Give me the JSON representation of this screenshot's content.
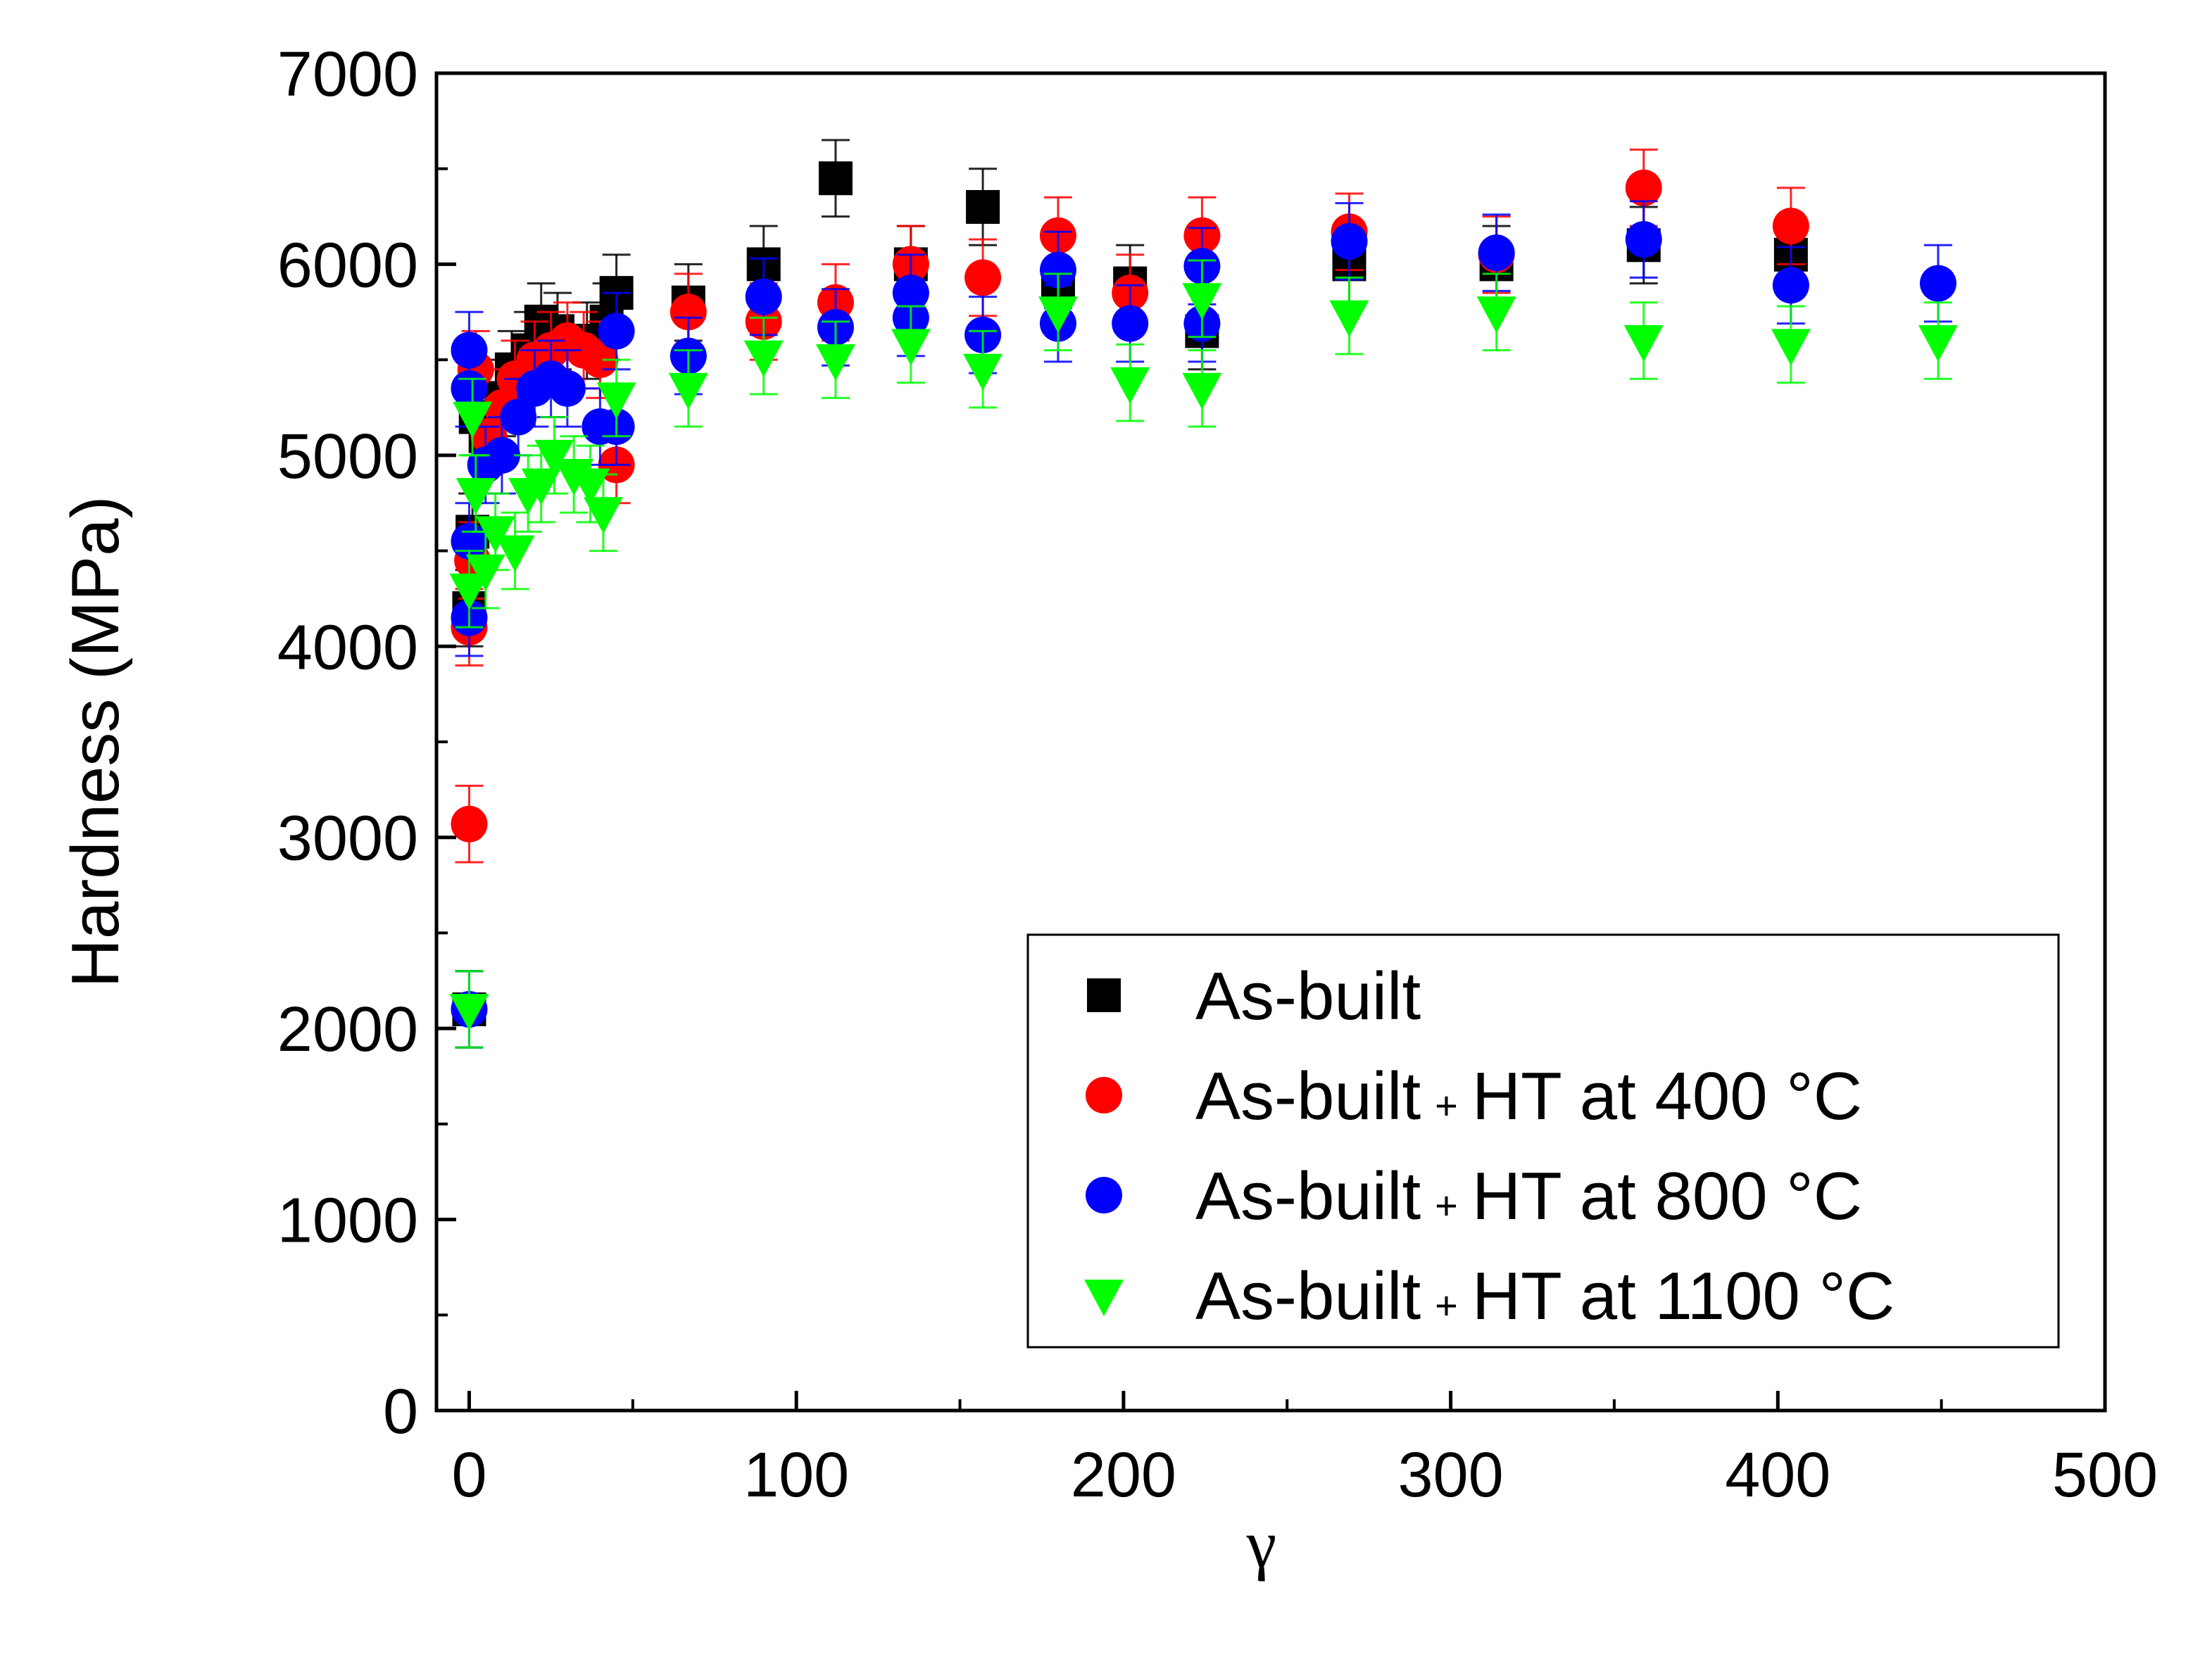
{
  "chart_data": {
    "type": "scatter",
    "title": "",
    "xlabel": "γ",
    "ylabel": "Hardness (MPa)",
    "xlim": [
      -10,
      500
    ],
    "ylim": [
      0,
      7000
    ],
    "x_ticks": [
      0,
      100,
      200,
      300,
      400,
      500
    ],
    "y_ticks": [
      0,
      1000,
      2000,
      3000,
      4000,
      5000,
      6000,
      7000
    ],
    "x_tick_labels": [
      "0",
      "100",
      "200",
      "300",
      "400",
      "500"
    ],
    "y_tick_labels": [
      "0",
      "1000",
      "2000",
      "3000",
      "4000",
      "5000",
      "6000",
      "7000"
    ],
    "legend_position": "bottom-right",
    "series": [
      {
        "name": "As-built",
        "legend_main": "As-built",
        "legend_plus": "",
        "legend_tail": "",
        "marker": "square",
        "color": "#000000",
        "points": [
          [
            0,
            2100,
            200
          ],
          [
            0,
            4200,
            200
          ],
          [
            1,
            4600,
            200
          ],
          [
            2,
            5200,
            200
          ],
          [
            5,
            5100,
            200
          ],
          [
            10,
            5300,
            200
          ],
          [
            13,
            5450,
            200
          ],
          [
            18,
            5550,
            200
          ],
          [
            22,
            5700,
            200
          ],
          [
            27,
            5650,
            200
          ],
          [
            36,
            5600,
            200
          ],
          [
            42,
            5700,
            200
          ],
          [
            45,
            5850,
            200
          ],
          [
            67,
            5800,
            200
          ],
          [
            90,
            6000,
            200
          ],
          [
            112,
            6450,
            200
          ],
          [
            135,
            6000,
            200
          ],
          [
            157,
            6300,
            200
          ],
          [
            180,
            5900,
            200
          ],
          [
            202,
            5900,
            200
          ],
          [
            224,
            5650,
            200
          ],
          [
            269,
            6000,
            200
          ],
          [
            314,
            6000,
            200
          ],
          [
            359,
            6100,
            200
          ],
          [
            404,
            6050,
            200
          ]
        ]
      },
      {
        "name": "As-built + HT at 400 °C",
        "legend_main": "As-built",
        "legend_plus": "+",
        "legend_tail": "HT at 400 °C",
        "marker": "circle",
        "color": "#ff0000",
        "points": [
          [
            0,
            3070,
            200
          ],
          [
            0,
            4100,
            200
          ],
          [
            1,
            4450,
            200
          ],
          [
            2,
            5450,
            200
          ],
          [
            6,
            5100,
            200
          ],
          [
            10,
            5250,
            200
          ],
          [
            14,
            5400,
            200
          ],
          [
            20,
            5500,
            200
          ],
          [
            25,
            5550,
            200
          ],
          [
            30,
            5600,
            200
          ],
          [
            35,
            5550,
            200
          ],
          [
            40,
            5500,
            200
          ],
          [
            45,
            4950,
            200
          ],
          [
            67,
            5750,
            200
          ],
          [
            90,
            5700,
            200
          ],
          [
            112,
            5800,
            200
          ],
          [
            135,
            6000,
            200
          ],
          [
            157,
            5930,
            200
          ],
          [
            180,
            6150,
            200
          ],
          [
            202,
            5850,
            200
          ],
          [
            224,
            6150,
            200
          ],
          [
            269,
            6170,
            200
          ],
          [
            314,
            6050,
            200
          ],
          [
            359,
            6400,
            200
          ],
          [
            404,
            6200,
            200
          ]
        ]
      },
      {
        "name": "As-built + HT at 800 °C",
        "legend_main": "As-built",
        "legend_plus": "+",
        "legend_tail": "HT at 800 °C",
        "marker": "circle",
        "color": "#0000ff",
        "points": [
          [
            0,
            2100,
            200
          ],
          [
            0,
            4150,
            200
          ],
          [
            0,
            4550,
            200
          ],
          [
            0,
            5350,
            200
          ],
          [
            0,
            5550,
            200
          ],
          [
            5,
            4950,
            200
          ],
          [
            10,
            5000,
            200
          ],
          [
            15,
            5200,
            200
          ],
          [
            20,
            5350,
            200
          ],
          [
            25,
            5400,
            200
          ],
          [
            30,
            5350,
            200
          ],
          [
            40,
            5150,
            200
          ],
          [
            45,
            5150,
            200
          ],
          [
            45,
            5650,
            200
          ],
          [
            67,
            5520,
            200
          ],
          [
            90,
            5830,
            200
          ],
          [
            112,
            5670,
            200
          ],
          [
            135,
            5720,
            200
          ],
          [
            135,
            5850,
            200
          ],
          [
            157,
            5630,
            200
          ],
          [
            180,
            5690,
            200
          ],
          [
            180,
            5970,
            200
          ],
          [
            202,
            5690,
            200
          ],
          [
            224,
            5690,
            200
          ],
          [
            224,
            5990,
            200
          ],
          [
            269,
            6120,
            200
          ],
          [
            314,
            6060,
            200
          ],
          [
            359,
            6130,
            200
          ],
          [
            404,
            5890,
            200
          ],
          [
            449,
            5900,
            200
          ]
        ]
      },
      {
        "name": "As-built + HT at 1100 °C",
        "legend_main": "As-built",
        "legend_plus": "+",
        "legend_tail": "HT at 1100 °C",
        "marker": "triangle-down",
        "color": "#00ff00",
        "points": [
          [
            0,
            2100,
            200
          ],
          [
            0,
            4300,
            200
          ],
          [
            1,
            5200,
            200
          ],
          [
            2,
            4800,
            200
          ],
          [
            5,
            4400,
            200
          ],
          [
            8,
            4600,
            200
          ],
          [
            14,
            4500,
            200
          ],
          [
            18,
            4800,
            200
          ],
          [
            22,
            4850,
            200
          ],
          [
            26,
            5000,
            200
          ],
          [
            32,
            4900,
            200
          ],
          [
            37,
            4850,
            200
          ],
          [
            41,
            4700,
            200
          ],
          [
            45,
            5300,
            200
          ],
          [
            67,
            5350,
            200
          ],
          [
            90,
            5520,
            200
          ],
          [
            112,
            5500,
            200
          ],
          [
            135,
            5580,
            200
          ],
          [
            157,
            5450,
            200
          ],
          [
            180,
            5750,
            200
          ],
          [
            202,
            5380,
            200
          ],
          [
            224,
            5350,
            200
          ],
          [
            224,
            5820,
            200
          ],
          [
            269,
            5730,
            200
          ],
          [
            314,
            5750,
            200
          ],
          [
            359,
            5600,
            200
          ],
          [
            404,
            5580,
            200
          ],
          [
            449,
            5600,
            200
          ]
        ]
      }
    ]
  }
}
